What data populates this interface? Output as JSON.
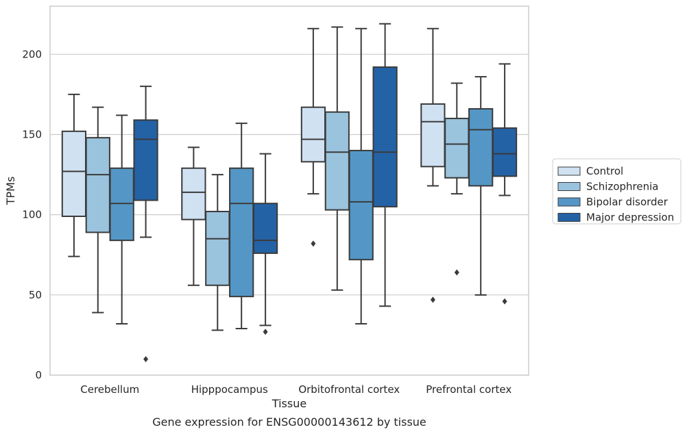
{
  "chart_data": {
    "type": "boxplot",
    "title": "",
    "caption": "Gene expression for ENSG00000143612 by tissue",
    "xlabel": "Tissue",
    "ylabel": "TPMs",
    "ylim": [
      0,
      230
    ],
    "yticks": [
      0,
      50,
      100,
      150,
      200
    ],
    "grid": "horizontal",
    "legend_position": "right",
    "categories": [
      "Cerebellum",
      "Hipppocampus",
      "Orbitofrontal cortex",
      "Prefrontal cortex"
    ],
    "series": [
      {
        "name": "Control",
        "color": "#d0e1f2",
        "boxes": [
          {
            "whislo": 74,
            "q1": 99,
            "med": 127,
            "q3": 152,
            "whishi": 175,
            "fliers": []
          },
          {
            "whislo": 56,
            "q1": 97,
            "med": 114,
            "q3": 129,
            "whishi": 142,
            "fliers": []
          },
          {
            "whislo": 113,
            "q1": 133,
            "med": 147,
            "q3": 167,
            "whishi": 216,
            "fliers": [
              82
            ]
          },
          {
            "whislo": 118,
            "q1": 130,
            "med": 158,
            "q3": 169,
            "whishi": 216,
            "fliers": [
              47
            ]
          }
        ]
      },
      {
        "name": "Schizophrenia",
        "color": "#9ac3dd",
        "boxes": [
          {
            "whislo": 39,
            "q1": 89,
            "med": 125,
            "q3": 148,
            "whishi": 167,
            "fliers": []
          },
          {
            "whislo": 28,
            "q1": 56,
            "med": 85,
            "q3": 102,
            "whishi": 125,
            "fliers": []
          },
          {
            "whislo": 53,
            "q1": 103,
            "med": 139,
            "q3": 164,
            "whishi": 217,
            "fliers": []
          },
          {
            "whislo": 113,
            "q1": 123,
            "med": 144,
            "q3": 160,
            "whishi": 182,
            "fliers": [
              64
            ]
          }
        ]
      },
      {
        "name": "Bipolar disorder",
        "color": "#5497c6",
        "boxes": [
          {
            "whislo": 32,
            "q1": 84,
            "med": 107,
            "q3": 129,
            "whishi": 162,
            "fliers": []
          },
          {
            "whislo": 29,
            "q1": 49,
            "med": 107,
            "q3": 129,
            "whishi": 157,
            "fliers": []
          },
          {
            "whislo": 32,
            "q1": 72,
            "med": 108,
            "q3": 140,
            "whishi": 216,
            "fliers": []
          },
          {
            "whislo": 50,
            "q1": 118,
            "med": 153,
            "q3": 166,
            "whishi": 186,
            "fliers": []
          }
        ]
      },
      {
        "name": "Major depression",
        "color": "#2462a6",
        "boxes": [
          {
            "whislo": 86,
            "q1": 109,
            "med": 147,
            "q3": 159,
            "whishi": 180,
            "fliers": [
              10
            ]
          },
          {
            "whislo": 31,
            "q1": 76,
            "med": 84,
            "q3": 107,
            "whishi": 138,
            "fliers": [
              27
            ]
          },
          {
            "whislo": 43,
            "q1": 105,
            "med": 139,
            "q3": 192,
            "whishi": 219,
            "fliers": []
          },
          {
            "whislo": 112,
            "q1": 124,
            "med": 138,
            "q3": 154,
            "whishi": 194,
            "fliers": [
              46
            ]
          }
        ]
      }
    ]
  },
  "colors": {
    "edge": "#3a3a3a",
    "grid": "#cccccc",
    "frame": "#cccccc"
  }
}
